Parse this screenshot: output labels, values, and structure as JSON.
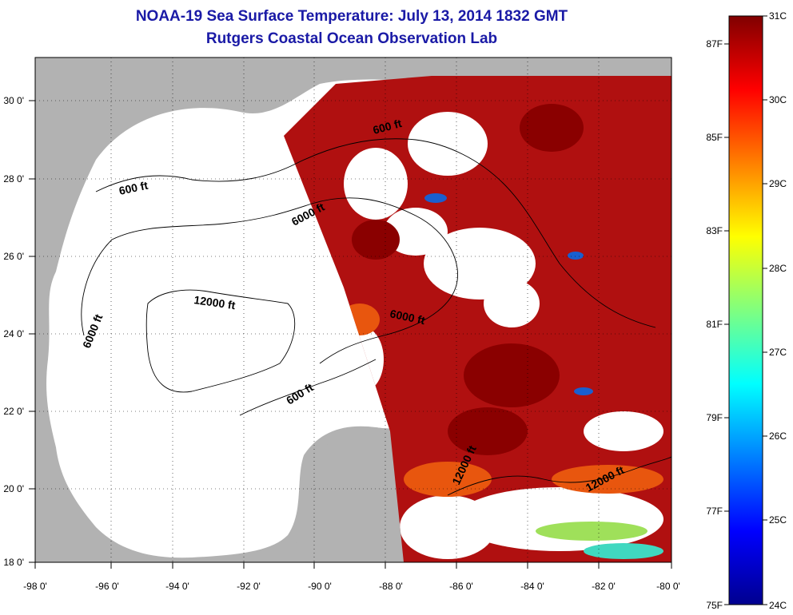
{
  "title": {
    "line1": "NOAA-19 Sea Surface Temperature:  July 13, 2014 1832 GMT",
    "line2": "Rutgers Coastal Ocean Observation Lab"
  },
  "axes": {
    "longitude_labels": [
      "-98 0'",
      "-96 0'",
      "-94 0'",
      "-92 0'",
      "-90 0'",
      "-88 0'",
      "-86 0'",
      "-84 0'",
      "-82 0'",
      "-80 0'"
    ],
    "longitude_values": [
      -98,
      -96,
      -94,
      -92,
      -90,
      -88,
      -86,
      -84,
      -82,
      -80
    ],
    "latitude_labels": [
      "30 0'",
      "28 0'",
      "26 0'",
      "24 0'",
      "22 0'",
      "20 0'",
      "18 0'"
    ],
    "latitude_values": [
      30,
      28,
      26,
      24,
      22,
      20,
      18
    ],
    "lon_range": [
      -98,
      -80
    ],
    "lat_range": [
      18,
      31.2
    ],
    "grid": "dotted"
  },
  "contour_labels": [
    "600 ft",
    "6000 ft",
    "12000 ft",
    "600 ft",
    "6000 ft",
    "6000 ft",
    "600 ft",
    "12000 ft",
    "12000 ft"
  ],
  "colorbar": {
    "celsius_labels": [
      "31C",
      "30C",
      "29C",
      "28C",
      "27C",
      "26C",
      "25C",
      "24C"
    ],
    "celsius_values": [
      31,
      30,
      29,
      28,
      27,
      26,
      25,
      24
    ],
    "fahrenheit_labels": [
      "87F",
      "85F",
      "83F",
      "81F",
      "79F",
      "77F",
      "75F"
    ],
    "fahrenheit_values": [
      87,
      85,
      83,
      81,
      79,
      77,
      75
    ],
    "range_c": [
      24,
      31
    ]
  },
  "colors": {
    "land": "#b2b2b2",
    "ocean_nodata": "#ffffff",
    "warm": "#b01010",
    "hot": "#8a0000",
    "orange": "#e8560e",
    "title": "#1a1aa6"
  }
}
